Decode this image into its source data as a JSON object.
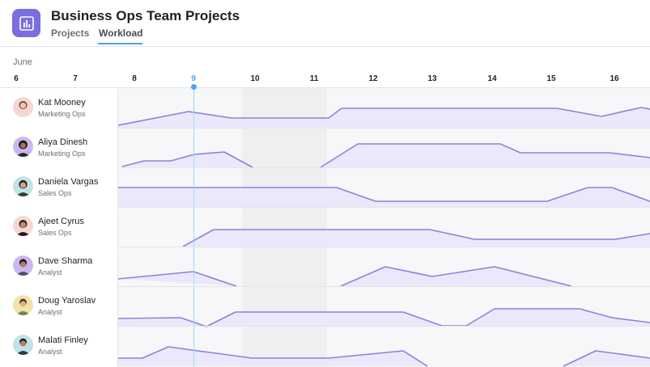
{
  "app": {
    "title": "Business Ops Team Projects",
    "icon": "bar-chart-icon",
    "accent_color": "#7b6ee0"
  },
  "tabs": [
    {
      "label": "Projects",
      "active": false
    },
    {
      "label": "Workload",
      "active": true
    }
  ],
  "timeline": {
    "month": "June",
    "today": "9",
    "days": [
      "6",
      "7",
      "8",
      "9",
      "10",
      "11",
      "12",
      "13",
      "14",
      "15",
      "16"
    ],
    "line_color": "#8d80dd",
    "today_color": "#4ba3f5"
  },
  "people": [
    {
      "name": "Kat Mooney",
      "role": "Marketing Ops",
      "avatar": "avatar-kat"
    },
    {
      "name": "Aliya Dinesh",
      "role": "Marketing Ops",
      "avatar": "avatar-aliya"
    },
    {
      "name": "Daniela Vargas",
      "role": "Sales Ops",
      "avatar": "avatar-daniela"
    },
    {
      "name": "Ajeet Cyrus",
      "role": "Sales Ops",
      "avatar": "avatar-ajeet"
    },
    {
      "name": "Dave Sharma",
      "role": "Analyst",
      "avatar": "avatar-dave"
    },
    {
      "name": "Doug Yaroslav",
      "role": "Analyst",
      "avatar": "avatar-doug"
    },
    {
      "name": "Malati Finley",
      "role": "Analyst",
      "avatar": "avatar-malati"
    }
  ]
}
